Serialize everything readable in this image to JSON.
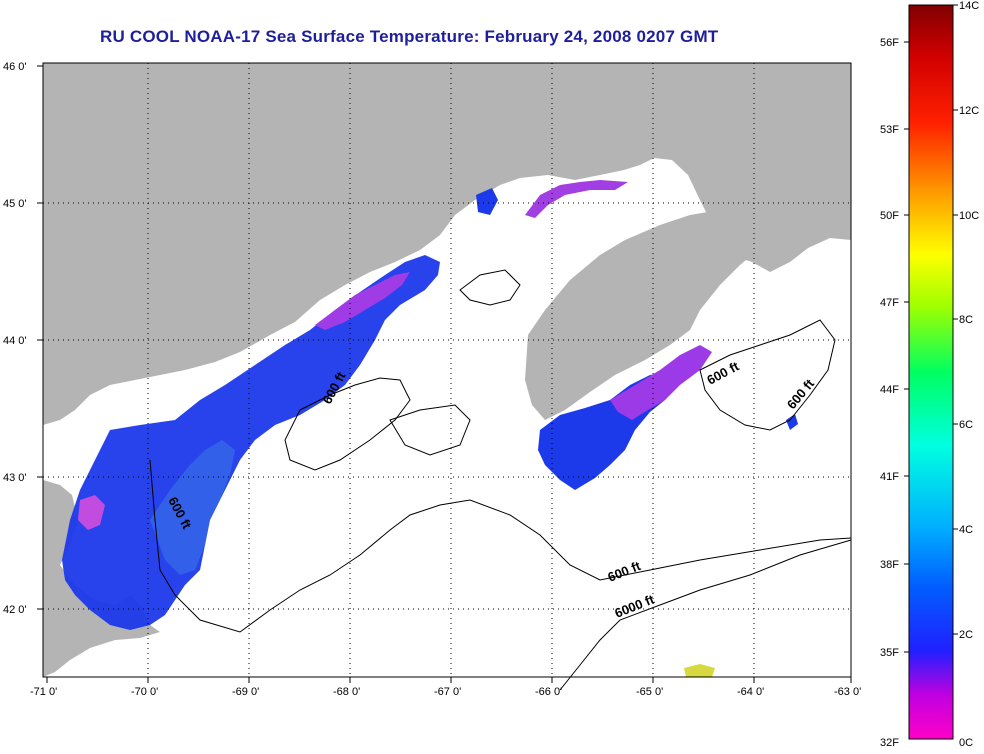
{
  "title": "RU COOL  NOAA-17  Sea Surface Temperature:  February 24, 2008 0207 GMT",
  "map": {
    "lon_ticks": [
      "-71 0'",
      "-70 0'",
      "-69 0'",
      "-68 0'",
      "-67 0'",
      "-66 0'",
      "-65 0'",
      "-64 0'",
      "-63 0'"
    ],
    "lat_ticks": [
      "46 0'",
      "45 0'",
      "44 0'",
      "43 0'",
      "42 0'"
    ],
    "contour_labels": [
      "600 ft",
      "600 ft",
      "600 ft",
      "600 ft",
      "600 ft",
      "6000 ft"
    ],
    "colors": {
      "land": "#b4b4b4",
      "no_data": "#ffffff",
      "grid": "#000000"
    }
  },
  "colorbar": {
    "fahrenheit_labels": [
      "56F",
      "53F",
      "50F",
      "47F",
      "44F",
      "41F",
      "38F",
      "35F",
      "32F"
    ],
    "celsius_labels": [
      "14C",
      "12C",
      "10C",
      "8C",
      "6C",
      "4C",
      "2C",
      "0C"
    ],
    "range_c": [
      0,
      14
    ]
  }
}
